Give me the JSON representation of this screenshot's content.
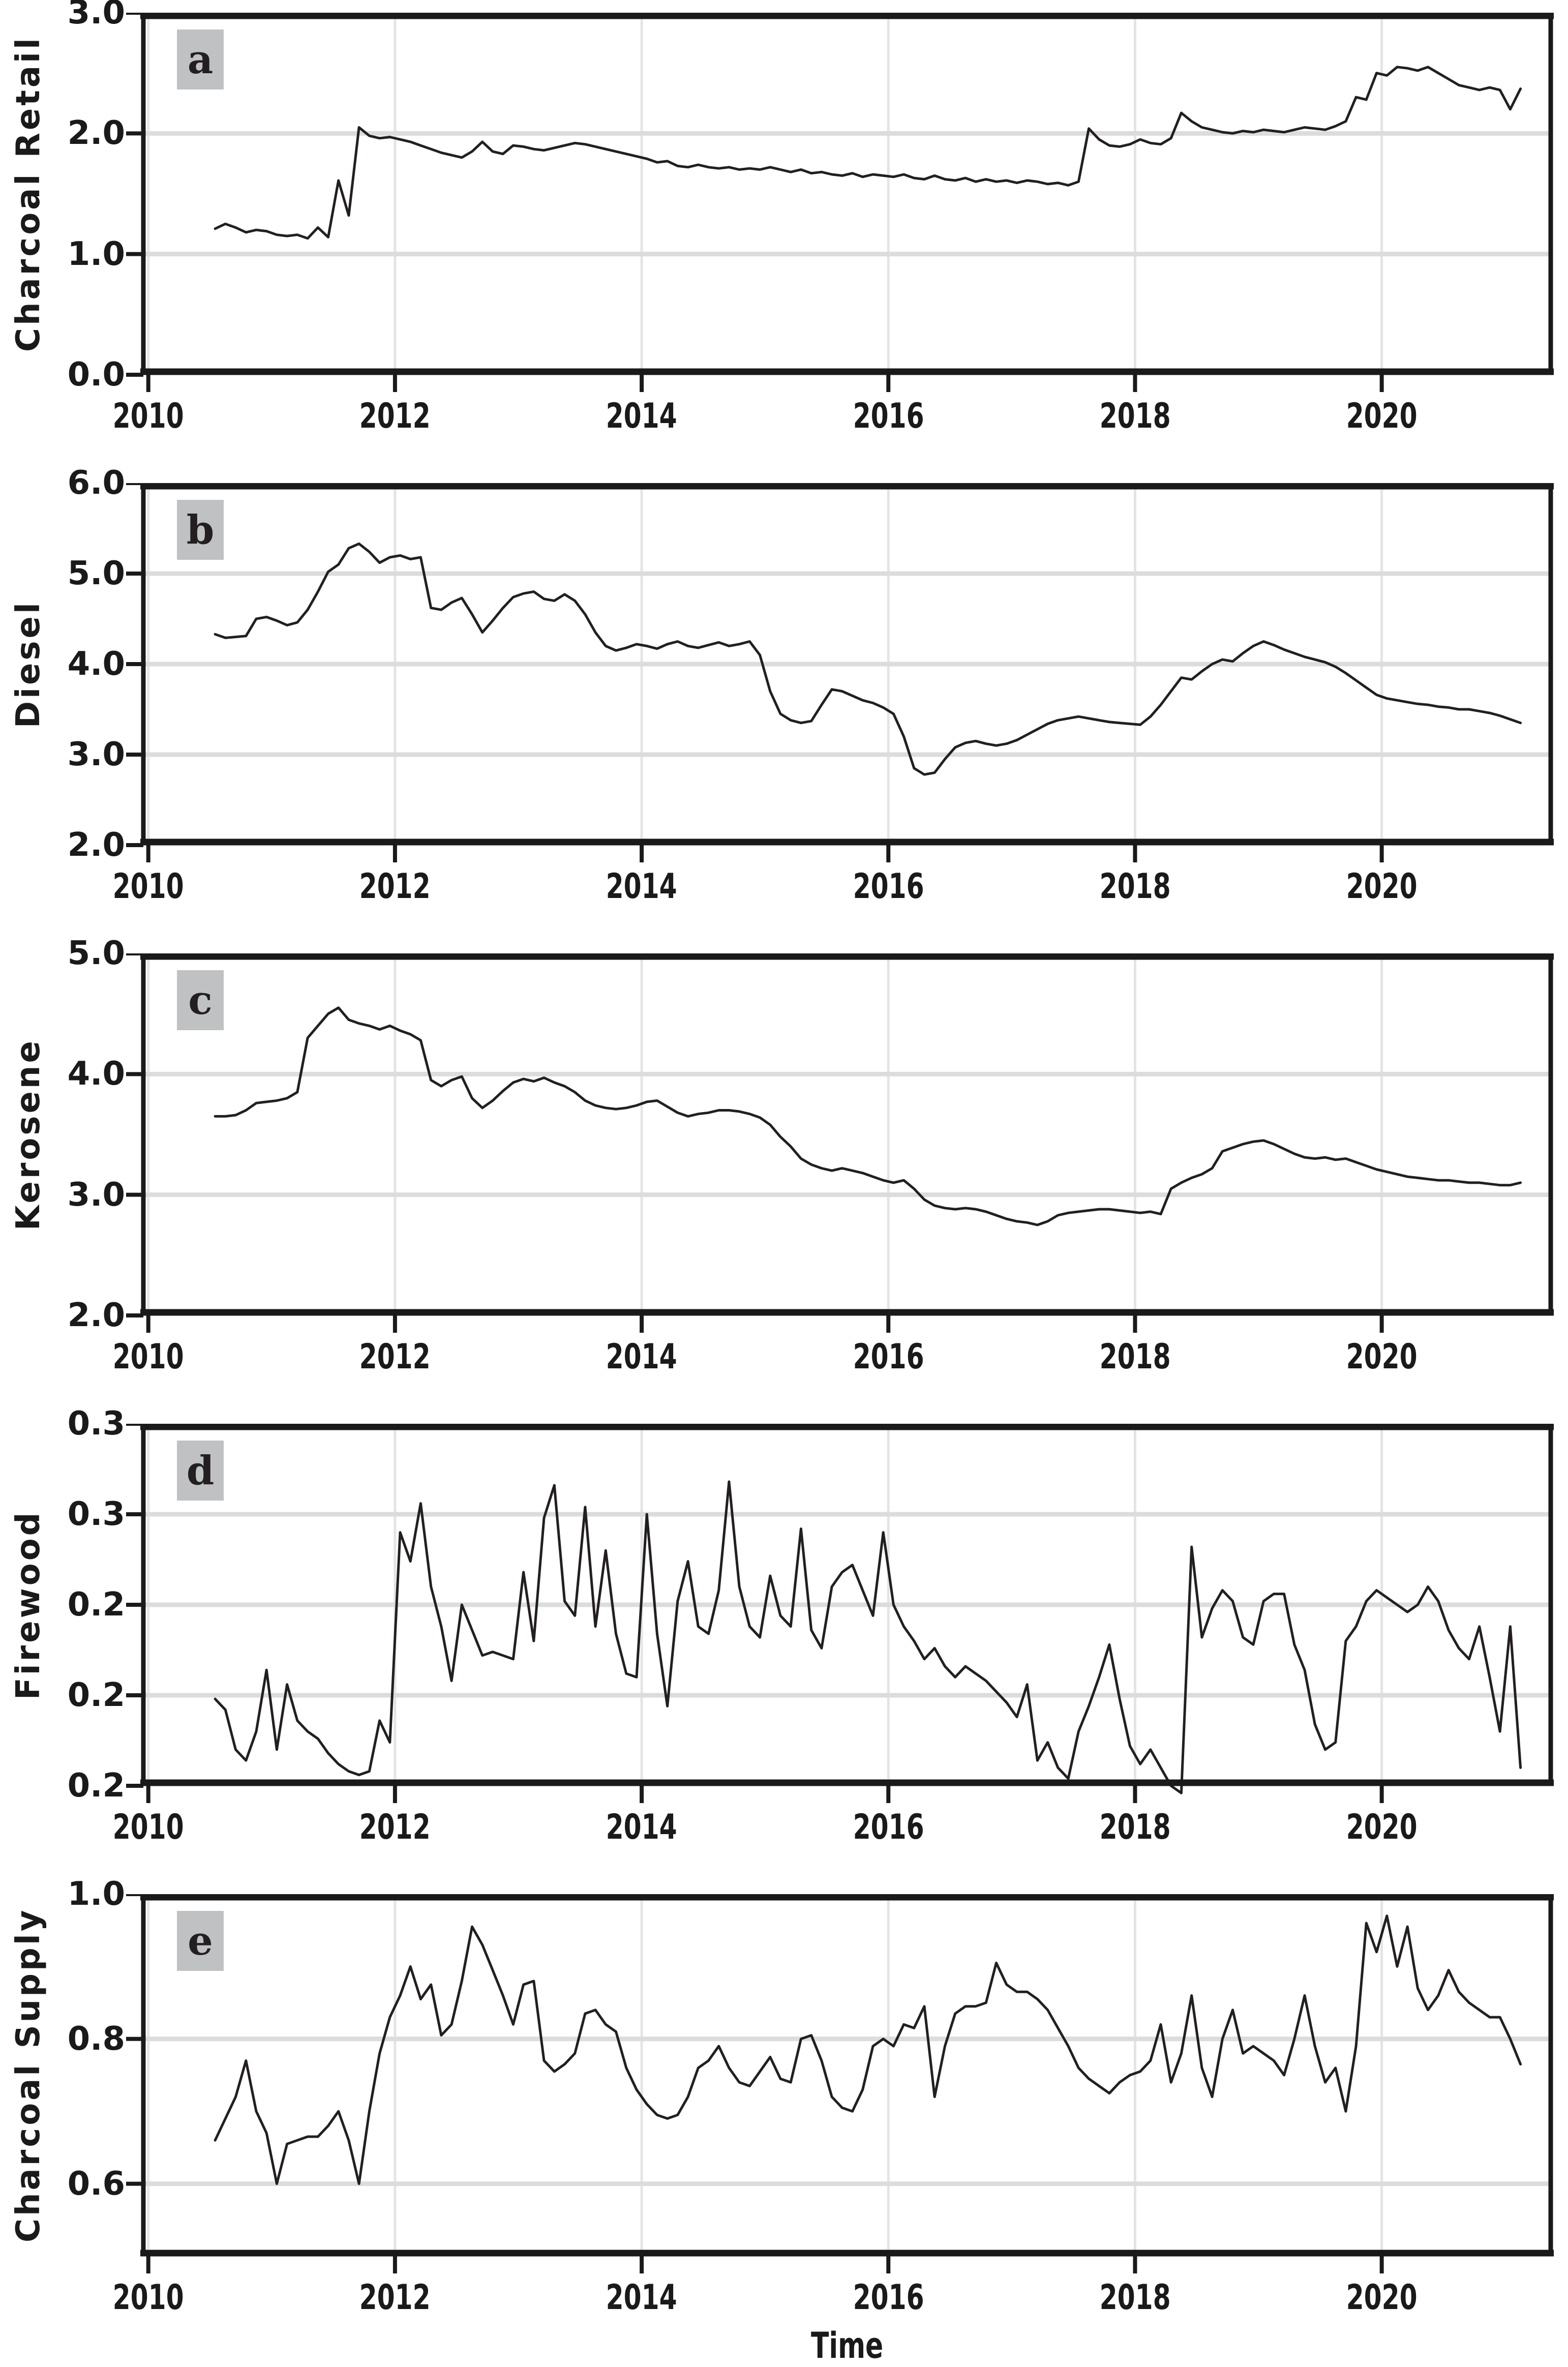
{
  "figure": {
    "xlabel": "Time",
    "x_range": [
      2009.96,
      2021.37
    ],
    "x_tick_years": [
      2010,
      2012,
      2014,
      2016,
      2018,
      2020
    ],
    "x_tick_labels": [
      "2010",
      "2012",
      "2014",
      "2016",
      "2018",
      "2020"
    ],
    "colors": {
      "line": "#231f20",
      "grid_horizontal": "#dcdcdc",
      "grid_vertical": "#e4e4e4",
      "spine": "#1a1a1a",
      "text": "#1a1a1a",
      "panel_label_bg": "#bfc1c3"
    }
  },
  "chart_data": [
    {
      "type": "line",
      "panel_label": "a",
      "ylabel": "Charcoal Retail",
      "ylim": [
        0.0,
        3.0
      ],
      "yticks": [
        {
          "v": 3.0,
          "label": "3.0"
        },
        {
          "v": 2.0,
          "label": "2.0"
        },
        {
          "v": 1.0,
          "label": "1.0"
        },
        {
          "v": 0.0,
          "label": "0.0"
        }
      ],
      "grid_y": [
        2.0,
        1.0
      ],
      "x_start": 2010.5417,
      "x_step": 0.0833333,
      "values": [
        1.21,
        1.25,
        1.22,
        1.18,
        1.2,
        1.19,
        1.16,
        1.15,
        1.16,
        1.13,
        1.22,
        1.14,
        1.61,
        1.32,
        2.05,
        1.98,
        1.96,
        1.97,
        1.95,
        1.93,
        1.9,
        1.87,
        1.84,
        1.82,
        1.8,
        1.85,
        1.93,
        1.85,
        1.83,
        1.9,
        1.89,
        1.87,
        1.86,
        1.88,
        1.9,
        1.92,
        1.91,
        1.89,
        1.87,
        1.85,
        1.83,
        1.81,
        1.79,
        1.76,
        1.77,
        1.73,
        1.72,
        1.74,
        1.72,
        1.71,
        1.72,
        1.7,
        1.71,
        1.7,
        1.72,
        1.7,
        1.68,
        1.7,
        1.67,
        1.68,
        1.66,
        1.65,
        1.67,
        1.64,
        1.66,
        1.65,
        1.64,
        1.66,
        1.63,
        1.62,
        1.65,
        1.62,
        1.61,
        1.63,
        1.6,
        1.62,
        1.6,
        1.61,
        1.59,
        1.61,
        1.6,
        1.58,
        1.59,
        1.57,
        1.6,
        2.04,
        1.95,
        1.9,
        1.89,
        1.91,
        1.95,
        1.92,
        1.91,
        1.96,
        2.17,
        2.1,
        2.05,
        2.03,
        2.01,
        2.0,
        2.02,
        2.01,
        2.03,
        2.02,
        2.01,
        2.03,
        2.05,
        2.04,
        2.03,
        2.06,
        2.1,
        2.3,
        2.28,
        2.5,
        2.48,
        2.55,
        2.54,
        2.52,
        2.55,
        2.5,
        2.45,
        2.4,
        2.38,
        2.36,
        2.38,
        2.36,
        2.2,
        2.37
      ]
    },
    {
      "type": "line",
      "panel_label": "b",
      "ylabel": "Diesel",
      "ylim": [
        2.0,
        6.0
      ],
      "yticks": [
        {
          "v": 6.0,
          "label": "6.0"
        },
        {
          "v": 5.0,
          "label": "5.0"
        },
        {
          "v": 4.0,
          "label": "4.0"
        },
        {
          "v": 3.0,
          "label": "3.0"
        },
        {
          "v": 2.0,
          "label": "2.0"
        }
      ],
      "grid_y": [
        5.0,
        4.0,
        3.0
      ],
      "x_start": 2010.5417,
      "x_step": 0.0833333,
      "values": [
        4.33,
        4.29,
        4.3,
        4.31,
        4.5,
        4.52,
        4.48,
        4.43,
        4.46,
        4.6,
        4.8,
        5.02,
        5.1,
        5.28,
        5.33,
        5.24,
        5.12,
        5.18,
        5.2,
        5.16,
        5.18,
        4.62,
        4.6,
        4.68,
        4.73,
        4.55,
        4.35,
        4.48,
        4.62,
        4.74,
        4.78,
        4.8,
        4.72,
        4.7,
        4.77,
        4.7,
        4.55,
        4.35,
        4.2,
        4.15,
        4.18,
        4.22,
        4.2,
        4.17,
        4.22,
        4.25,
        4.2,
        4.18,
        4.21,
        4.24,
        4.2,
        4.22,
        4.25,
        4.1,
        3.7,
        3.45,
        3.38,
        3.35,
        3.37,
        3.55,
        3.72,
        3.7,
        3.65,
        3.6,
        3.57,
        3.52,
        3.45,
        3.2,
        2.85,
        2.78,
        2.8,
        2.95,
        3.08,
        3.13,
        3.15,
        3.12,
        3.1,
        3.12,
        3.16,
        3.22,
        3.28,
        3.34,
        3.38,
        3.4,
        3.42,
        3.4,
        3.38,
        3.36,
        3.35,
        3.34,
        3.33,
        3.42,
        3.55,
        3.7,
        3.85,
        3.83,
        3.92,
        4.0,
        4.05,
        4.03,
        4.12,
        4.2,
        4.25,
        4.21,
        4.16,
        4.12,
        4.08,
        4.05,
        4.02,
        3.97,
        3.9,
        3.82,
        3.74,
        3.66,
        3.62,
        3.6,
        3.58,
        3.56,
        3.55,
        3.53,
        3.52,
        3.5,
        3.5,
        3.48,
        3.46,
        3.43,
        3.39,
        3.35
      ]
    },
    {
      "type": "line",
      "panel_label": "c",
      "ylabel": "Kerosene",
      "ylim": [
        2.0,
        5.0
      ],
      "yticks": [
        {
          "v": 5.0,
          "label": "5.0"
        },
        {
          "v": 4.0,
          "label": "4.0"
        },
        {
          "v": 3.0,
          "label": "3.0"
        },
        {
          "v": 2.0,
          "label": "2.0"
        }
      ],
      "grid_y": [
        4.0,
        3.0
      ],
      "x_start": 2010.5417,
      "x_step": 0.0833333,
      "values": [
        3.65,
        3.65,
        3.66,
        3.7,
        3.76,
        3.77,
        3.78,
        3.8,
        3.85,
        4.3,
        4.4,
        4.5,
        4.55,
        4.45,
        4.42,
        4.4,
        4.37,
        4.4,
        4.36,
        4.33,
        4.28,
        3.95,
        3.9,
        3.95,
        3.98,
        3.8,
        3.72,
        3.78,
        3.86,
        3.93,
        3.96,
        3.94,
        3.97,
        3.93,
        3.9,
        3.85,
        3.78,
        3.74,
        3.72,
        3.71,
        3.72,
        3.74,
        3.77,
        3.78,
        3.73,
        3.68,
        3.65,
        3.67,
        3.68,
        3.7,
        3.7,
        3.69,
        3.67,
        3.64,
        3.58,
        3.48,
        3.4,
        3.3,
        3.25,
        3.22,
        3.2,
        3.22,
        3.2,
        3.18,
        3.15,
        3.12,
        3.1,
        3.12,
        3.05,
        2.96,
        2.91,
        2.89,
        2.88,
        2.89,
        2.88,
        2.86,
        2.83,
        2.8,
        2.78,
        2.77,
        2.75,
        2.78,
        2.83,
        2.85,
        2.86,
        2.87,
        2.88,
        2.88,
        2.87,
        2.86,
        2.85,
        2.86,
        2.84,
        3.05,
        3.1,
        3.14,
        3.17,
        3.22,
        3.36,
        3.39,
        3.42,
        3.44,
        3.45,
        3.42,
        3.38,
        3.34,
        3.31,
        3.3,
        3.31,
        3.29,
        3.3,
        3.27,
        3.24,
        3.21,
        3.19,
        3.17,
        3.15,
        3.14,
        3.13,
        3.12,
        3.12,
        3.11,
        3.1,
        3.1,
        3.09,
        3.08,
        3.08,
        3.1
      ]
    },
    {
      "type": "line",
      "panel_label": "d",
      "ylabel": "Firewood",
      "ylim": [
        0.2,
        0.3
      ],
      "yticks": [
        {
          "v": 0.3,
          "label": "0.3"
        },
        {
          "v": 0.275,
          "label": "0.3"
        },
        {
          "v": 0.25,
          "label": "0.2"
        },
        {
          "v": 0.225,
          "label": "0.2"
        },
        {
          "v": 0.2,
          "label": "0.2"
        }
      ],
      "grid_y": [
        0.275,
        0.25,
        0.225
      ],
      "x_start": 2010.5417,
      "x_step": 0.0833333,
      "values": [
        0.224,
        0.221,
        0.21,
        0.207,
        0.215,
        0.232,
        0.21,
        0.228,
        0.218,
        0.215,
        0.213,
        0.209,
        0.206,
        0.204,
        0.203,
        0.204,
        0.218,
        0.212,
        0.27,
        0.262,
        0.278,
        0.255,
        0.244,
        0.229,
        0.25,
        0.243,
        0.236,
        0.237,
        0.236,
        0.235,
        0.259,
        0.24,
        0.274,
        0.283,
        0.251,
        0.247,
        0.277,
        0.244,
        0.265,
        0.242,
        0.231,
        0.23,
        0.275,
        0.242,
        0.222,
        0.251,
        0.262,
        0.244,
        0.242,
        0.254,
        0.284,
        0.255,
        0.244,
        0.241,
        0.258,
        0.247,
        0.244,
        0.271,
        0.243,
        0.238,
        0.255,
        0.259,
        0.261,
        0.254,
        0.247,
        0.27,
        0.25,
        0.244,
        0.24,
        0.235,
        0.238,
        0.233,
        0.23,
        0.233,
        0.231,
        0.229,
        0.226,
        0.223,
        0.219,
        0.228,
        0.207,
        0.212,
        0.205,
        0.202,
        0.215,
        0.222,
        0.23,
        0.239,
        0.224,
        0.211,
        0.206,
        0.21,
        0.205,
        0.2,
        0.198,
        0.266,
        0.241,
        0.249,
        0.254,
        0.251,
        0.241,
        0.239,
        0.251,
        0.253,
        0.253,
        0.239,
        0.232,
        0.217,
        0.21,
        0.212,
        0.24,
        0.244,
        0.251,
        0.254,
        0.252,
        0.25,
        0.248,
        0.25,
        0.255,
        0.251,
        0.243,
        0.238,
        0.235,
        0.244,
        0.23,
        0.215,
        0.244,
        0.205
      ]
    },
    {
      "type": "line",
      "panel_label": "e",
      "ylabel": "Charcoal Supply",
      "ylim": [
        0.5,
        1.0
      ],
      "yticks": [
        {
          "v": 1.0,
          "label": "1.0"
        },
        {
          "v": 0.8,
          "label": "0.8"
        },
        {
          "v": 0.6,
          "label": "0.6"
        }
      ],
      "grid_y": [
        0.8,
        0.6
      ],
      "x_start": 2010.5417,
      "x_step": 0.0833333,
      "values": [
        0.66,
        0.69,
        0.72,
        0.77,
        0.7,
        0.67,
        0.6,
        0.655,
        0.66,
        0.665,
        0.665,
        0.68,
        0.7,
        0.66,
        0.6,
        0.7,
        0.78,
        0.83,
        0.86,
        0.9,
        0.855,
        0.875,
        0.805,
        0.82,
        0.88,
        0.955,
        0.93,
        0.895,
        0.86,
        0.82,
        0.875,
        0.88,
        0.77,
        0.755,
        0.765,
        0.78,
        0.835,
        0.84,
        0.82,
        0.81,
        0.76,
        0.73,
        0.71,
        0.695,
        0.69,
        0.695,
        0.72,
        0.76,
        0.77,
        0.79,
        0.76,
        0.74,
        0.735,
        0.755,
        0.775,
        0.745,
        0.74,
        0.8,
        0.805,
        0.77,
        0.72,
        0.705,
        0.7,
        0.73,
        0.79,
        0.8,
        0.79,
        0.82,
        0.815,
        0.845,
        0.72,
        0.79,
        0.835,
        0.845,
        0.845,
        0.85,
        0.905,
        0.875,
        0.865,
        0.865,
        0.855,
        0.84,
        0.815,
        0.79,
        0.76,
        0.745,
        0.735,
        0.725,
        0.74,
        0.75,
        0.755,
        0.77,
        0.82,
        0.74,
        0.78,
        0.86,
        0.76,
        0.72,
        0.8,
        0.84,
        0.78,
        0.79,
        0.78,
        0.77,
        0.75,
        0.8,
        0.86,
        0.79,
        0.74,
        0.76,
        0.7,
        0.79,
        0.96,
        0.92,
        0.97,
        0.9,
        0.955,
        0.87,
        0.84,
        0.86,
        0.895,
        0.865,
        0.85,
        0.84,
        0.83,
        0.83,
        0.8,
        0.765
      ]
    }
  ]
}
